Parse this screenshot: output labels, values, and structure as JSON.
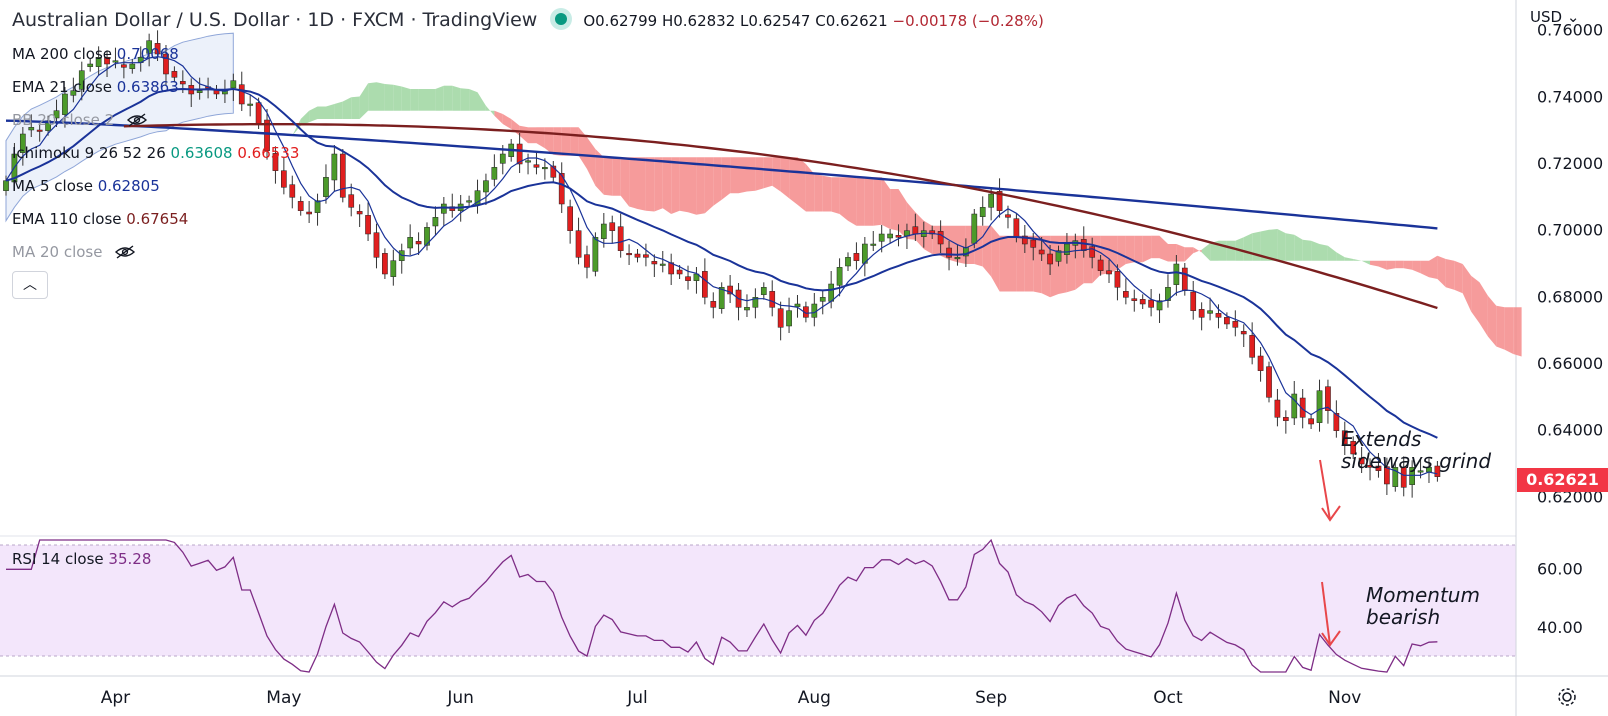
{
  "header": {
    "symbol_title": "Australian Dollar / U.S. Dollar · 1D · FXCM · TradingView",
    "ohlc_open": "O0.62799",
    "ohlc_high": "H0.62832",
    "ohlc_low": "L0.62547",
    "ohlc_close": "C0.62621",
    "ohlc_change": "−0.00178 (−0.28%)"
  },
  "indicators": [
    {
      "label": "MA 200 close",
      "value": "0.70068",
      "color": "#1a3399"
    },
    {
      "label": "EMA 21 close",
      "value": "0.63863",
      "color": "#1a3399"
    },
    {
      "label": "BB 20 close 2",
      "value": "",
      "color": "#9598a1"
    },
    {
      "label": "Ichimoku 9 26 52 26",
      "value": "0.63608",
      "value2": "0.66533",
      "color": "#089981",
      "color2": "#e11d1d"
    },
    {
      "label": "MA 5 close",
      "value": "0.62805",
      "color": "#1a3399"
    },
    {
      "label": "EMA 110 close",
      "value": "0.67654",
      "color": "#7b1f1f"
    },
    {
      "label": "MA 20 close",
      "value": "",
      "color": "#9598a1"
    }
  ],
  "currency": "USD",
  "last_price": "0.62621",
  "annotations": {
    "price_note": [
      "Extends",
      "sideways grind"
    ],
    "rsi_note": [
      "Momentum",
      "bearish"
    ]
  },
  "rsi_legend": {
    "label": "RSI 14 close",
    "value": "35.28"
  },
  "colors": {
    "up": "#4c9a2a",
    "down": "#e01f1f",
    "ma200": "#1a3399",
    "ema21": "#1a3399",
    "ema110": "#7b1f1f",
    "cloud_bull": "#9ed6a0",
    "cloud_bear": "#f48a8a",
    "rsi_line": "#7e2d86",
    "rsi_band": "#f3e6fb",
    "accent": "#e01f1f"
  },
  "chart_data": [
    {
      "type": "candlestick",
      "title": "Australian Dollar / U.S. Dollar · 1D · FXCM · TradingView",
      "xlabel": "",
      "ylabel": "",
      "ylim": [
        0.612,
        0.765
      ],
      "y_ticks": [
        "0.76000",
        "0.74000",
        "0.72000",
        "0.70000",
        "0.68000",
        "0.66000",
        "0.64000",
        "0.62000"
      ],
      "x_ticks": [
        "Apr",
        "May",
        "Jun",
        "Jul",
        "Aug",
        "Sep",
        "Oct",
        "Nov"
      ],
      "close_series": [
        0.715,
        0.723,
        0.729,
        0.731,
        0.73,
        0.733,
        0.736,
        0.741,
        0.742,
        0.748,
        0.75,
        0.752,
        0.75,
        0.751,
        0.749,
        0.75,
        0.752,
        0.757,
        0.753,
        0.747,
        0.746,
        0.744,
        0.741,
        0.742,
        0.743,
        0.741,
        0.742,
        0.745,
        0.738,
        0.738,
        0.732,
        0.724,
        0.718,
        0.713,
        0.71,
        0.706,
        0.705,
        0.709,
        0.716,
        0.723,
        0.71,
        0.707,
        0.705,
        0.699,
        0.692,
        0.687,
        0.691,
        0.694,
        0.698,
        0.696,
        0.701,
        0.704,
        0.708,
        0.706,
        0.708,
        0.709,
        0.712,
        0.715,
        0.719,
        0.723,
        0.726,
        0.72,
        0.721,
        0.719,
        0.719,
        0.716,
        0.708,
        0.7,
        0.692,
        0.689,
        0.698,
        0.702,
        0.7,
        0.694,
        0.693,
        0.692,
        0.692,
        0.69,
        0.69,
        0.687,
        0.687,
        0.685,
        0.687,
        0.68,
        0.677,
        0.683,
        0.681,
        0.677,
        0.677,
        0.68,
        0.683,
        0.677,
        0.671,
        0.676,
        0.678,
        0.674,
        0.678,
        0.68,
        0.684,
        0.689,
        0.692,
        0.691,
        0.696,
        0.696,
        0.699,
        0.699,
        0.698,
        0.7,
        0.699,
        0.7,
        0.699,
        0.696,
        0.692,
        0.692,
        0.695,
        0.705,
        0.707,
        0.711,
        0.706,
        0.704,
        0.698,
        0.696,
        0.695,
        0.693,
        0.69,
        0.694,
        0.696,
        0.697,
        0.694,
        0.692,
        0.688,
        0.687,
        0.683,
        0.68,
        0.679,
        0.678,
        0.677,
        0.679,
        0.683,
        0.69,
        0.682,
        0.676,
        0.674,
        0.676,
        0.674,
        0.672,
        0.671,
        0.669,
        0.662,
        0.658,
        0.65,
        0.644,
        0.643,
        0.651,
        0.644,
        0.642,
        0.652,
        0.646,
        0.64,
        0.636,
        0.633,
        0.63,
        0.629,
        0.628,
        0.624,
        0.629,
        0.623,
        0.629,
        0.628,
        0.629,
        0.6262
      ],
      "overlays": [
        "MA 200 close",
        "EMA 110 close",
        "EMA 21 close",
        "MA 5 close",
        "Ichimoku 9 26 52 26",
        "BB 20 close 2"
      ],
      "grid": false
    },
    {
      "type": "line",
      "title": "RSI 14 close",
      "ylim": [
        25,
        70
      ],
      "y_ticks": [
        "60.00",
        "40.00"
      ],
      "levels": [
        70,
        30
      ],
      "last_value": 35.28,
      "grid": false
    }
  ]
}
